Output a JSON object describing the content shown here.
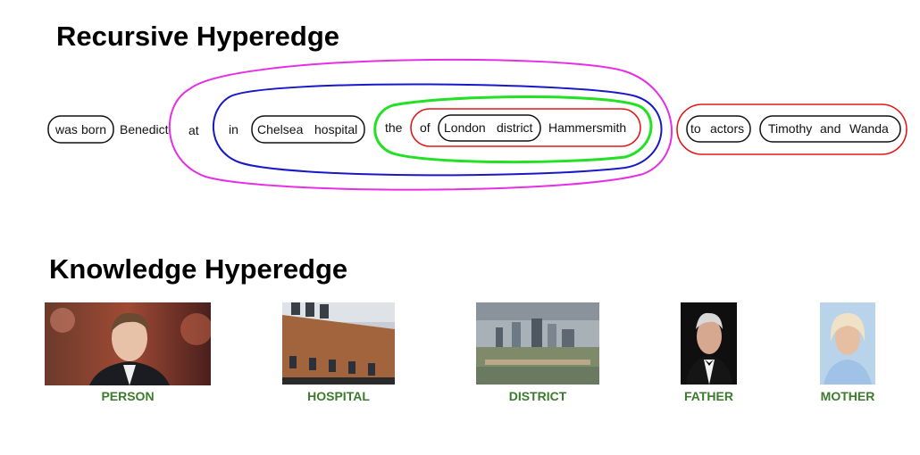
{
  "recursive": {
    "title": "Recursive Hyperedge",
    "words": {
      "was": "was",
      "born": "born",
      "benedict": "Benedict",
      "at": "at",
      "in": "in",
      "chelsea": "Chelsea",
      "hospital": "hospital",
      "the": "the",
      "of": "of",
      "london": "London",
      "district": "district",
      "hammersmith": "Hammersmith",
      "to": "to",
      "actors": "actors",
      "timothy": "Timothy",
      "and": "and",
      "wanda": "Wanda"
    },
    "colors": {
      "magenta": "#e52ee5",
      "blue": "#1818c8",
      "green": "#22e022",
      "red": "#e01818",
      "black": "#111111"
    }
  },
  "knowledge": {
    "title": "Knowledge Hyperedge",
    "items": [
      {
        "label": "PERSON",
        "image": "portrait-photo"
      },
      {
        "label": "HOSPITAL",
        "image": "hospital-building-photo"
      },
      {
        "label": "DISTRICT",
        "image": "city-skyline-photo"
      },
      {
        "label": "FATHER",
        "image": "portrait-photo"
      },
      {
        "label": "MOTHER",
        "image": "portrait-photo"
      }
    ],
    "caption_color": "#3c7a2e"
  }
}
